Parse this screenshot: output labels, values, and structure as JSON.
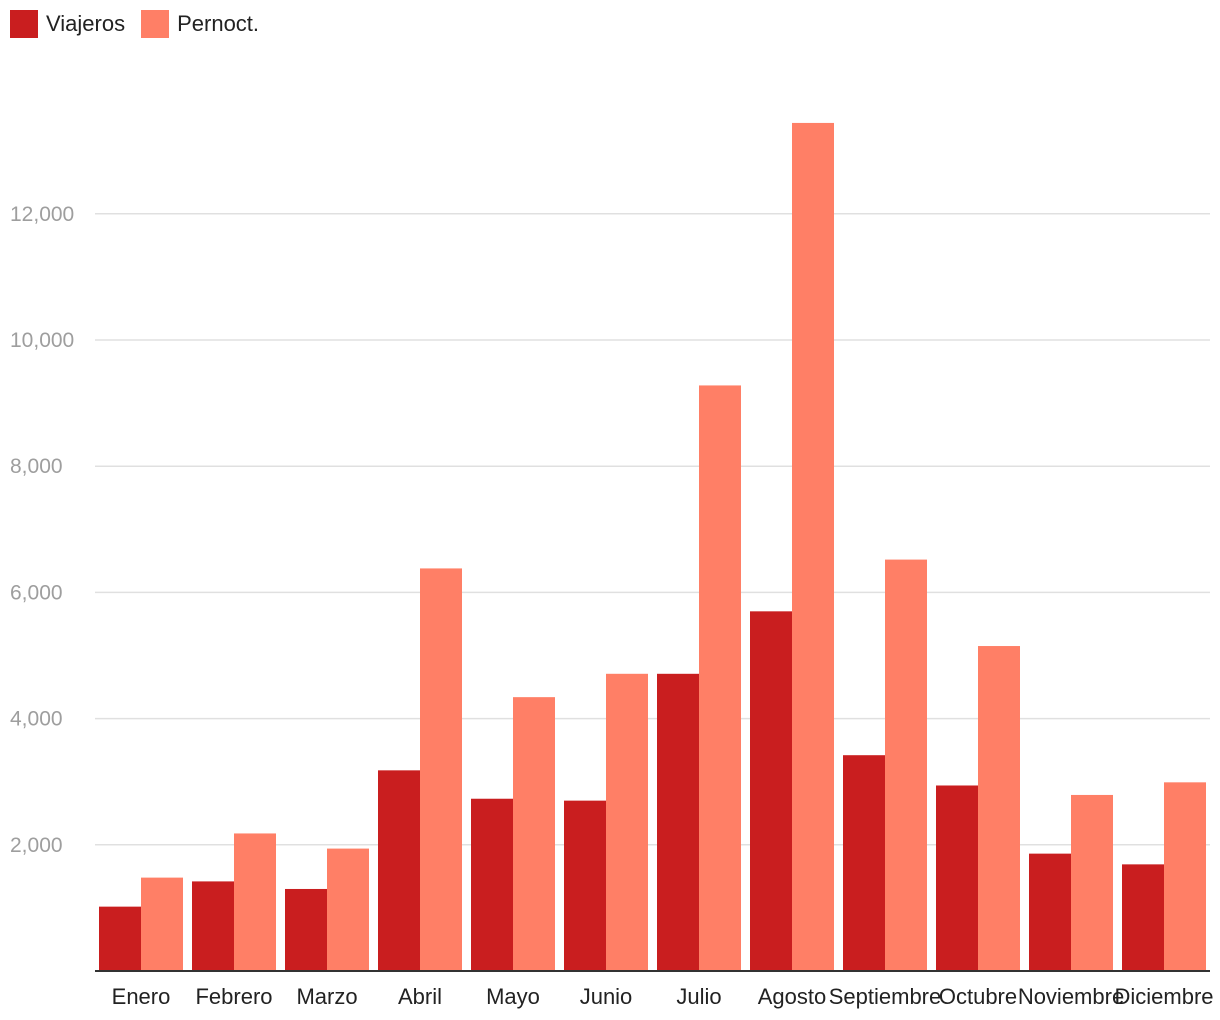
{
  "chart_data": {
    "type": "bar",
    "categories": [
      "Enero",
      "Febrero",
      "Marzo",
      "Abril",
      "Mayo",
      "Junio",
      "Julio",
      "Agosto",
      "Septiembre",
      "Octubre",
      "Noviembre",
      "Diciembre"
    ],
    "series": [
      {
        "name": "Viajeros",
        "color": "#c91e1f",
        "values": [
          1020,
          1420,
          1300,
          3180,
          2730,
          2700,
          4710,
          5700,
          3420,
          2940,
          1860,
          1690
        ]
      },
      {
        "name": "Pernoct.",
        "color": "#ff7f66",
        "values": [
          1480,
          2180,
          1940,
          6380,
          4340,
          4710,
          9280,
          13440,
          6520,
          5150,
          2790,
          2990
        ]
      }
    ],
    "y_ticks": [
      "2,000",
      "4,000",
      "6,000",
      "8,000",
      "10,000",
      "12,000"
    ],
    "y_tick_values": [
      2000,
      4000,
      6000,
      8000,
      10000,
      12000
    ],
    "ylim": [
      0,
      14200
    ],
    "grid": true,
    "legend_position": "top-left"
  }
}
